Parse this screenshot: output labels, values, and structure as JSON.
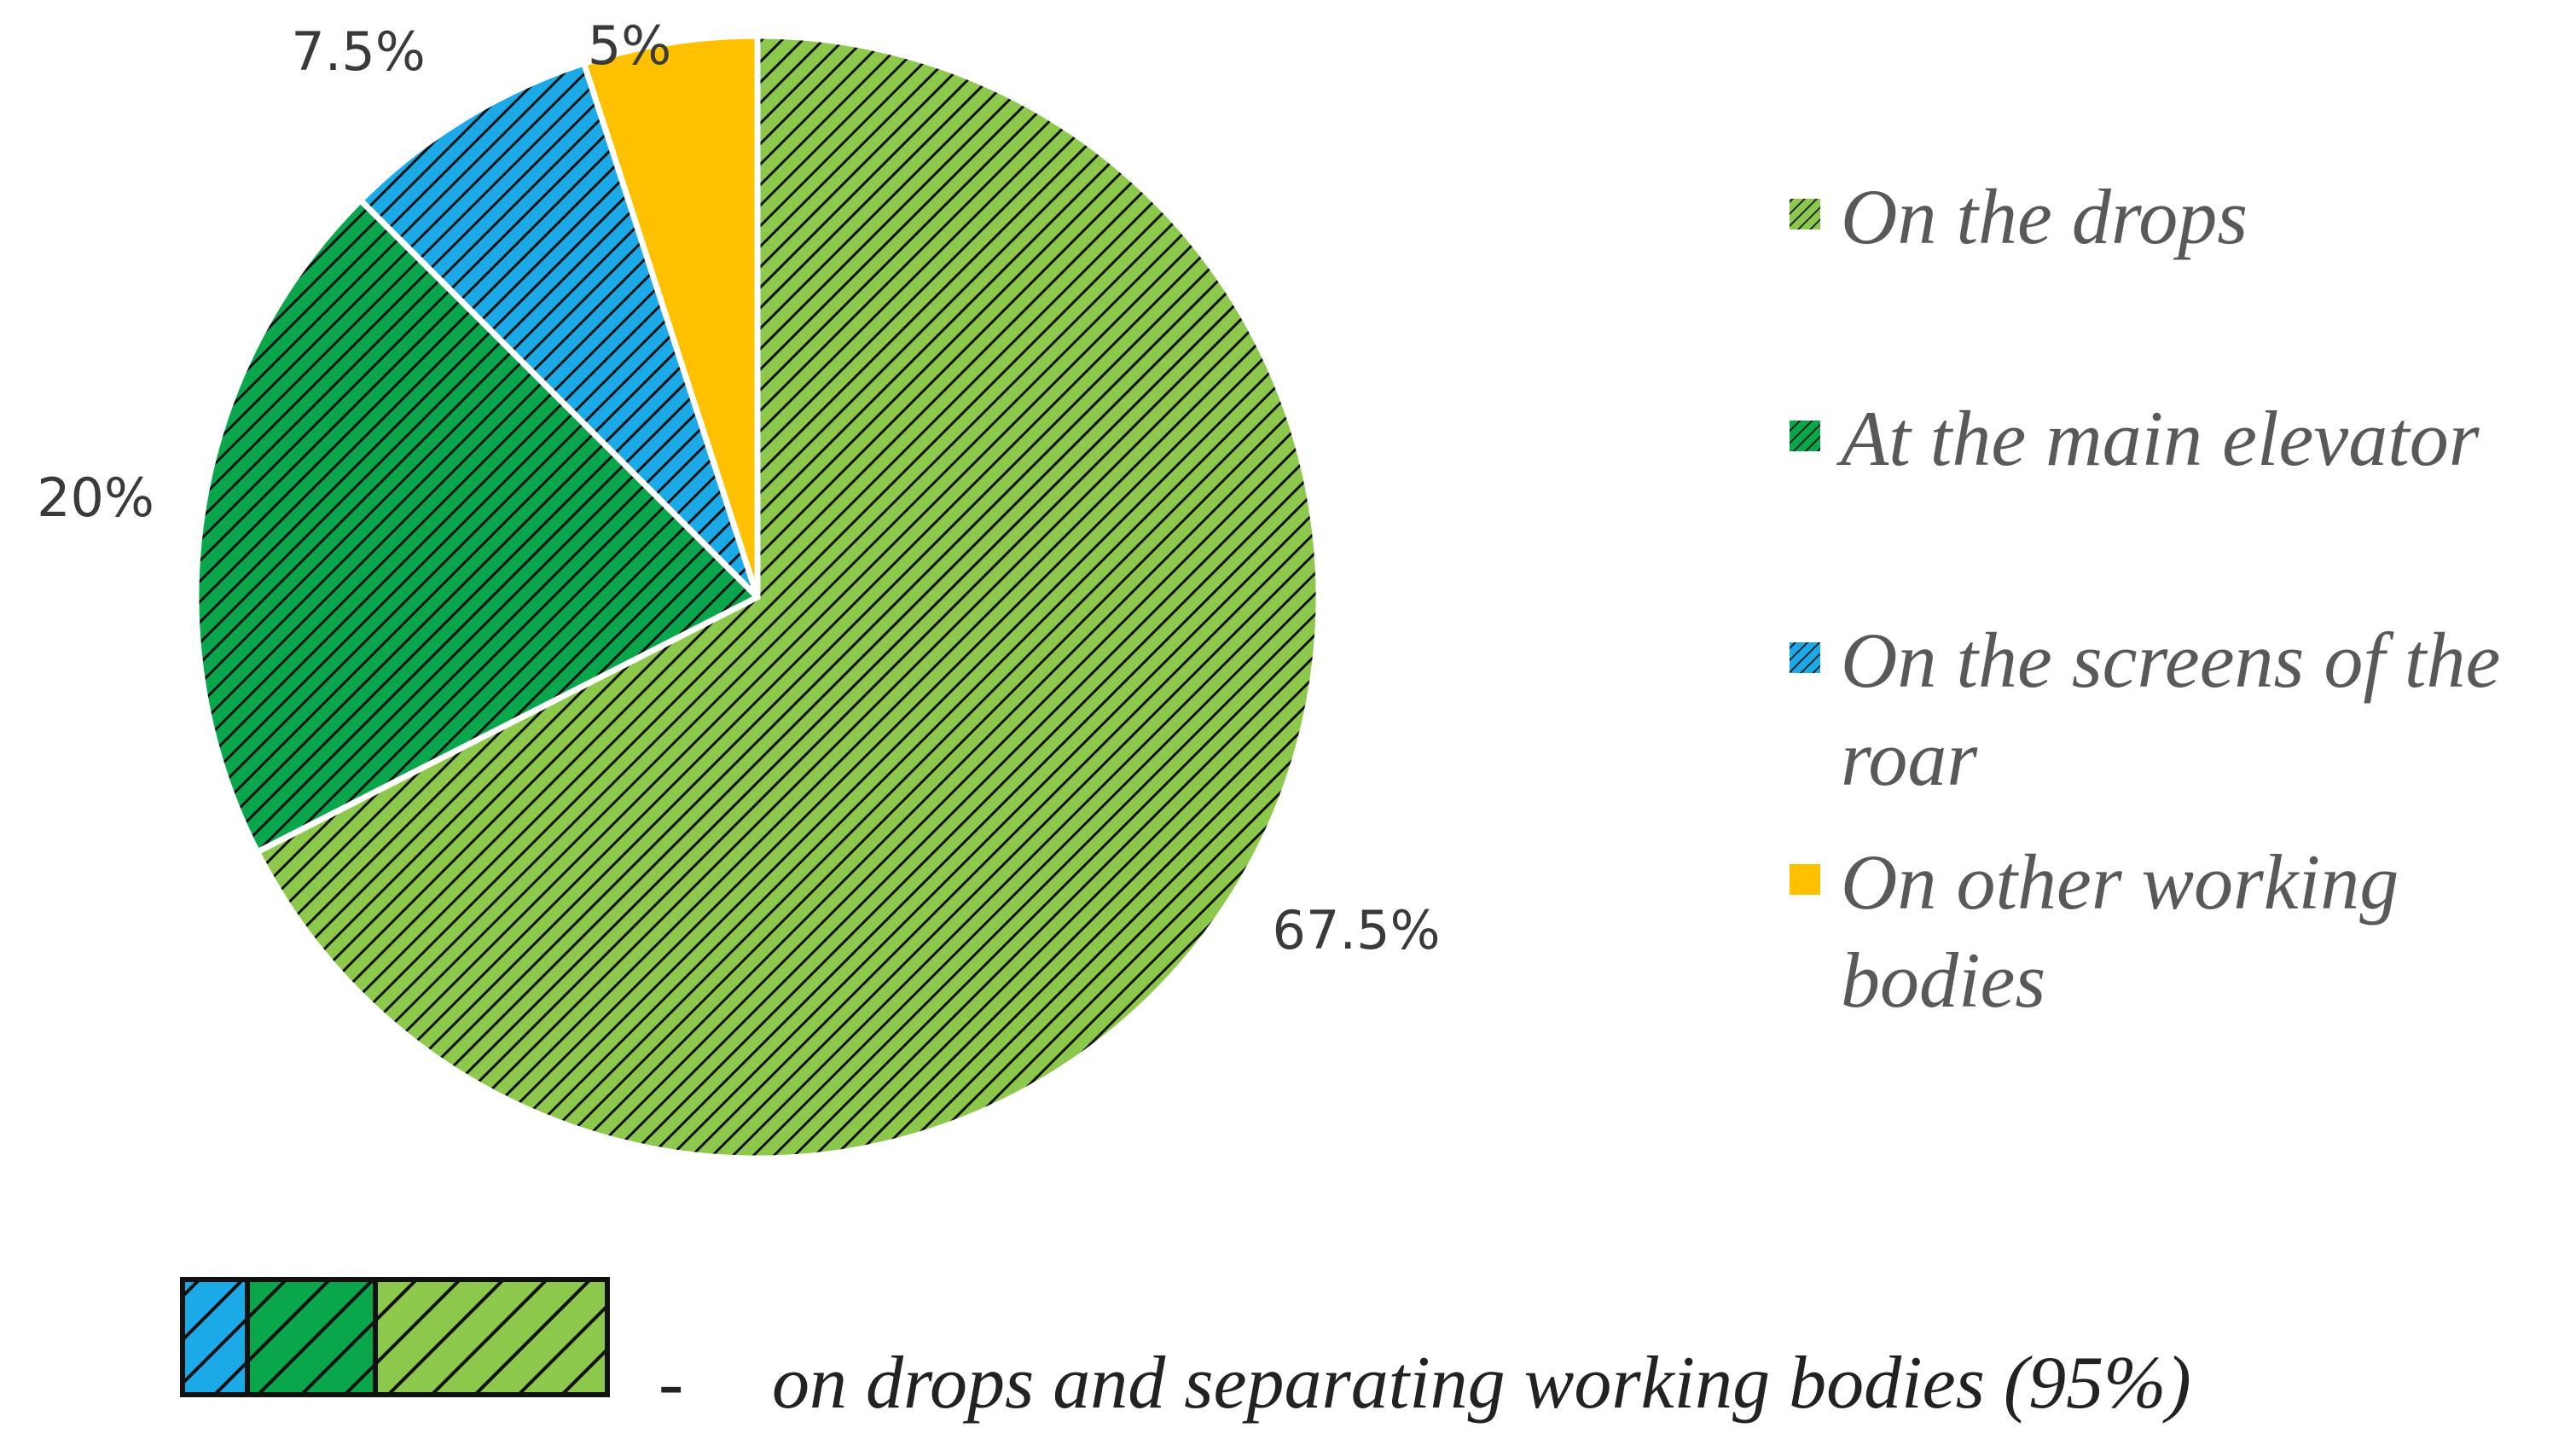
{
  "chart_data": {
    "type": "pie",
    "title": "",
    "slices": [
      {
        "label": "On the drops",
        "legend_lines": [
          "On the drops"
        ],
        "value": 67.5,
        "data_label": "67.5%",
        "color": "#8cc84b",
        "pattern": "hatched"
      },
      {
        "label": "At the main elevator",
        "legend_lines": [
          "At the main elevator"
        ],
        "value": 20,
        "data_label": "20%",
        "color": "#0aa64c",
        "pattern": "hatched"
      },
      {
        "label": "On the screens of the roar",
        "legend_lines": [
          "On the screens of the",
          "roar"
        ],
        "value": 7.5,
        "data_label": "7.5%",
        "color": "#1ba9e8",
        "pattern": "hatched"
      },
      {
        "label": "On other working bodies",
        "legend_lines": [
          "On other working",
          "bodies"
        ],
        "value": 5,
        "data_label": "5%",
        "color": "#ffc000",
        "pattern": "solid"
      }
    ],
    "start_angle_deg": 0,
    "direction": "clockwise",
    "legend_position": "right"
  },
  "note": {
    "dash": "-",
    "text": "on drops and separating working bodies (95%)",
    "swatch_colors": [
      "#1ba9e8",
      "#0aa64c",
      "#8cc84b"
    ]
  }
}
